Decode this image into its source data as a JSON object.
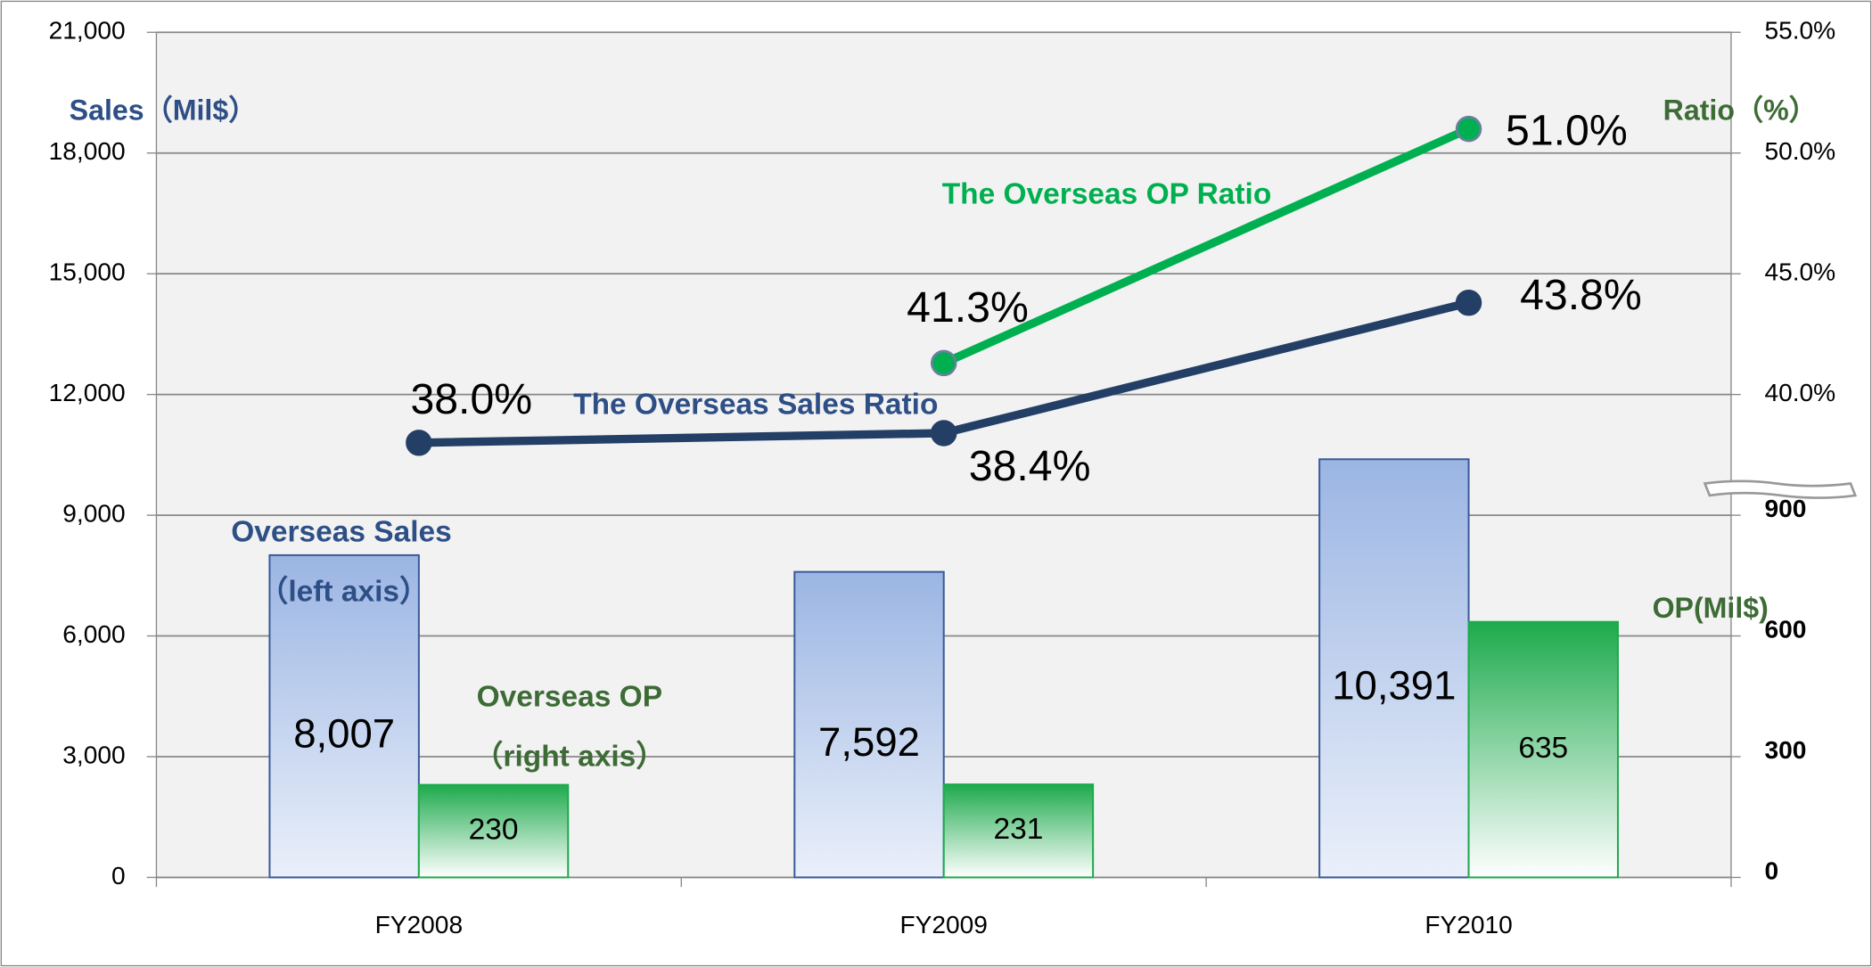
{
  "chart_data": {
    "type": "bar-line",
    "categories": [
      "FY2008",
      "FY2009",
      "FY2010"
    ],
    "ylim": [
      0,
      21000
    ],
    "yticks": [
      0,
      {
        "value": 3000,
        "label": "3,000"
      },
      {
        "value": 6000,
        "label": "6,000"
      },
      {
        "value": 9000,
        "label": "9,000"
      },
      {
        "value": 12000,
        "label": "12,000"
      },
      {
        "value": 15000,
        "label": "15,000"
      },
      {
        "value": 18000,
        "label": "18,000"
      },
      {
        "value": 21000,
        "label": "21,000"
      }
    ],
    "ylabel": "Sales（Mil$）",
    "y2lim": [
      20,
      55
    ],
    "y2ticks": [
      {
        "value": 40,
        "label": "40.0%"
      },
      {
        "value": 45,
        "label": "45.0%"
      },
      {
        "value": 50,
        "label": "50.0%"
      },
      {
        "value": 55,
        "label": "55.0%"
      }
    ],
    "y2label": "Ratio（%）",
    "y3lim": [
      0,
      2100
    ],
    "y3ticks": [
      0,
      300,
      600,
      900
    ],
    "y3label": "OP(Mil$)",
    "grid": true,
    "series": [
      {
        "name": "Overseas Sales",
        "note": "（left axis）",
        "kind": "bar",
        "axis": "y",
        "color": "#9bb5e3",
        "values": [
          8007,
          7592,
          10391
        ],
        "value_labels": [
          "8,007",
          "7,592",
          "10,391"
        ]
      },
      {
        "name": "Overseas OP",
        "note": "（right axis）",
        "kind": "bar",
        "axis": "y3",
        "color": "#1daa4c",
        "values": [
          230,
          231,
          635
        ]
      },
      {
        "name": "The Overseas Sales Ratio",
        "kind": "line",
        "axis": "y2",
        "color": "#243f66",
        "values": [
          38.0,
          38.4,
          43.8
        ],
        "value_labels": [
          "38.0%",
          "38.4%",
          "43.8%"
        ]
      },
      {
        "name": "The Overseas OP Ratio",
        "kind": "line",
        "axis": "y2",
        "color": "#00b050",
        "values": [
          null,
          41.3,
          51.0
        ],
        "value_labels": [
          null,
          "41.3%",
          "51.0%"
        ]
      }
    ]
  }
}
